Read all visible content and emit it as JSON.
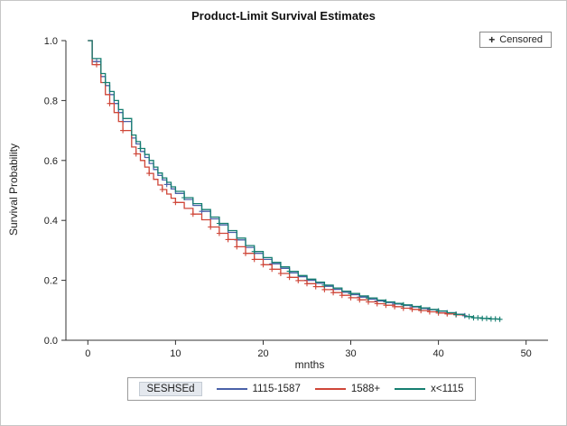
{
  "censored_legend": {
    "symbol": "+",
    "label": "Censored"
  },
  "legend": {
    "title": "SESHSEd",
    "items": [
      {
        "label": "1115-1587"
      },
      {
        "label": "1588+"
      },
      {
        "label": "x<1115"
      }
    ]
  },
  "chart_data": {
    "type": "line",
    "subtype": "kaplan-meier-step",
    "title": "Product-Limit Survival Estimates",
    "xlabel": "mnths",
    "ylabel": "Survival Probability",
    "xlim": [
      -2.5,
      52.5
    ],
    "ylim": [
      0,
      1.0
    ],
    "xticks": [
      0,
      10,
      20,
      30,
      40,
      50
    ],
    "yticks": [
      0,
      0.2,
      0.4,
      0.6,
      0.8,
      1.0
    ],
    "grid": false,
    "legend_position": "bottom",
    "censored_marker": "+",
    "series": [
      {
        "name": "1115-1587",
        "color": "#4a61a8",
        "points": [
          [
            0,
            1.0
          ],
          [
            0.5,
            0.93
          ],
          [
            1.5,
            0.88
          ],
          [
            2,
            0.85
          ],
          [
            2.5,
            0.82
          ],
          [
            3,
            0.79
          ],
          [
            3.5,
            0.76
          ],
          [
            4,
            0.73
          ],
          [
            5,
            0.675
          ],
          [
            5.5,
            0.655
          ],
          [
            6,
            0.63
          ],
          [
            6.5,
            0.61
          ],
          [
            7,
            0.59
          ],
          [
            7.5,
            0.57
          ],
          [
            8,
            0.55
          ],
          [
            8.5,
            0.535
          ],
          [
            9,
            0.52
          ],
          [
            9.5,
            0.505
          ],
          [
            10,
            0.49
          ],
          [
            11,
            0.47
          ],
          [
            12,
            0.45
          ],
          [
            13,
            0.43
          ],
          [
            14,
            0.405
          ],
          [
            15,
            0.385
          ],
          [
            16,
            0.36
          ],
          [
            17,
            0.335
          ],
          [
            18,
            0.31
          ],
          [
            19,
            0.29
          ],
          [
            20,
            0.27
          ],
          [
            21,
            0.255
          ],
          [
            22,
            0.24
          ],
          [
            23,
            0.225
          ],
          [
            24,
            0.212
          ],
          [
            25,
            0.2
          ],
          [
            26,
            0.19
          ],
          [
            27,
            0.18
          ],
          [
            28,
            0.17
          ],
          [
            29,
            0.16
          ],
          [
            30,
            0.152
          ],
          [
            31,
            0.144
          ],
          [
            32,
            0.137
          ],
          [
            33,
            0.131
          ],
          [
            34,
            0.126
          ],
          [
            35,
            0.121
          ],
          [
            36,
            0.116
          ],
          [
            37,
            0.111
          ],
          [
            38,
            0.106
          ],
          [
            39,
            0.102
          ],
          [
            40,
            0.097
          ],
          [
            41,
            0.092
          ],
          [
            42,
            0.087
          ],
          [
            43,
            0.082
          ]
        ],
        "censored": [
          1,
          4,
          9,
          13,
          17,
          21,
          25,
          28,
          31,
          33,
          35,
          37,
          39,
          41,
          42,
          43
        ]
      },
      {
        "name": "1588+",
        "color": "#cf4638",
        "points": [
          [
            0,
            1.0
          ],
          [
            0.5,
            0.92
          ],
          [
            1.5,
            0.86
          ],
          [
            2,
            0.82
          ],
          [
            2.5,
            0.79
          ],
          [
            3,
            0.76
          ],
          [
            3.5,
            0.73
          ],
          [
            4,
            0.7
          ],
          [
            5,
            0.645
          ],
          [
            5.5,
            0.622
          ],
          [
            6,
            0.6
          ],
          [
            6.5,
            0.578
          ],
          [
            7,
            0.557
          ],
          [
            7.5,
            0.537
          ],
          [
            8,
            0.518
          ],
          [
            8.5,
            0.503
          ],
          [
            9,
            0.488
          ],
          [
            9.5,
            0.474
          ],
          [
            10,
            0.46
          ],
          [
            11,
            0.44
          ],
          [
            12,
            0.421
          ],
          [
            13,
            0.402
          ],
          [
            14,
            0.378
          ],
          [
            15,
            0.357
          ],
          [
            16,
            0.336
          ],
          [
            17,
            0.312
          ],
          [
            18,
            0.29
          ],
          [
            19,
            0.27
          ],
          [
            20,
            0.252
          ],
          [
            21,
            0.237
          ],
          [
            22,
            0.223
          ],
          [
            23,
            0.21
          ],
          [
            24,
            0.199
          ],
          [
            25,
            0.189
          ],
          [
            26,
            0.179
          ],
          [
            27,
            0.169
          ],
          [
            28,
            0.159
          ],
          [
            29,
            0.15
          ],
          [
            30,
            0.142
          ],
          [
            31,
            0.135
          ],
          [
            32,
            0.128
          ],
          [
            33,
            0.122
          ],
          [
            34,
            0.117
          ],
          [
            35,
            0.112
          ],
          [
            36,
            0.107
          ],
          [
            37,
            0.103
          ],
          [
            38,
            0.099
          ],
          [
            39,
            0.095
          ],
          [
            40,
            0.091
          ],
          [
            41,
            0.088
          ],
          [
            42,
            0.085
          ],
          [
            43,
            0.082
          ]
        ],
        "censored": [
          1,
          2.5,
          4,
          5.5,
          7,
          8.5,
          10,
          12,
          14,
          15,
          16,
          17,
          18,
          19,
          20,
          21,
          22,
          23,
          24,
          25,
          26,
          27,
          28,
          29,
          30,
          31,
          32,
          33,
          34,
          35,
          36,
          37,
          38,
          39,
          40,
          41,
          42
        ]
      },
      {
        "name": "x<1115",
        "color": "#157e70",
        "points": [
          [
            0,
            1.0
          ],
          [
            0.5,
            0.94
          ],
          [
            1.5,
            0.89
          ],
          [
            2,
            0.86
          ],
          [
            2.5,
            0.83
          ],
          [
            3,
            0.8
          ],
          [
            3.5,
            0.77
          ],
          [
            4,
            0.74
          ],
          [
            5,
            0.685
          ],
          [
            5.5,
            0.663
          ],
          [
            6,
            0.64
          ],
          [
            6.5,
            0.62
          ],
          [
            7,
            0.6
          ],
          [
            7.5,
            0.578
          ],
          [
            8,
            0.558
          ],
          [
            8.5,
            0.542
          ],
          [
            9,
            0.527
          ],
          [
            9.5,
            0.512
          ],
          [
            10,
            0.497
          ],
          [
            11,
            0.476
          ],
          [
            12,
            0.456
          ],
          [
            13,
            0.436
          ],
          [
            14,
            0.411
          ],
          [
            15,
            0.39
          ],
          [
            16,
            0.366
          ],
          [
            17,
            0.341
          ],
          [
            18,
            0.316
          ],
          [
            19,
            0.296
          ],
          [
            20,
            0.276
          ],
          [
            21,
            0.26
          ],
          [
            22,
            0.245
          ],
          [
            23,
            0.23
          ],
          [
            24,
            0.216
          ],
          [
            25,
            0.204
          ],
          [
            26,
            0.194
          ],
          [
            27,
            0.184
          ],
          [
            28,
            0.174
          ],
          [
            29,
            0.164
          ],
          [
            30,
            0.156
          ],
          [
            31,
            0.148
          ],
          [
            32,
            0.141
          ],
          [
            33,
            0.134
          ],
          [
            34,
            0.128
          ],
          [
            35,
            0.123
          ],
          [
            36,
            0.118
          ],
          [
            37,
            0.113
          ],
          [
            38,
            0.108
          ],
          [
            39,
            0.103
          ],
          [
            40,
            0.098
          ],
          [
            41,
            0.092
          ],
          [
            42,
            0.086
          ],
          [
            43,
            0.079
          ],
          [
            44,
            0.075
          ],
          [
            45,
            0.073
          ],
          [
            46,
            0.071
          ],
          [
            47,
            0.07
          ]
        ],
        "censored": [
          2,
          6,
          11,
          15,
          19,
          23,
          27,
          30,
          32,
          34,
          36,
          38,
          40,
          42,
          43.5,
          44,
          44.5,
          45,
          45.5,
          46,
          46.5,
          47
        ]
      }
    ]
  }
}
